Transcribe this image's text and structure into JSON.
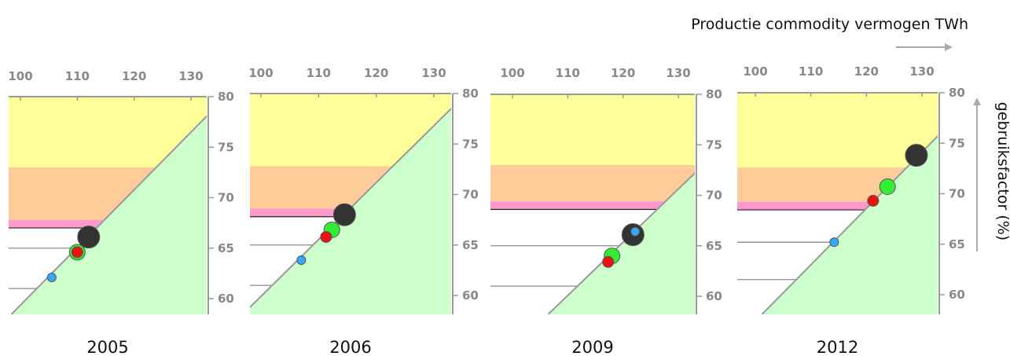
{
  "chart_data": {
    "x_axis_title": "Productie commodity vermogen TWh",
    "y_axis_title": "gebruiksfactor (%)",
    "x_ticks": [
      100,
      110,
      120,
      130
    ],
    "y_ticks": [
      60,
      65,
      70,
      75,
      80
    ],
    "colors": {
      "yellow_band": "#ffff99",
      "orange_band": "#ffcc99",
      "pink_band": "#ff99cc",
      "green_area": "#ccffcc",
      "capacity_line": "#999999",
      "black_point": "#333333",
      "green_point": "#33ee33",
      "red_point": "#ee1111",
      "blue_point": "#33aaff"
    },
    "panels": [
      {
        "year": "2005",
        "xlim": [
          97,
          133
        ],
        "ylim": [
          58.5,
          80
        ],
        "bands": {
          "pink": [
            67.0,
            67.8
          ],
          "orange": [
            67.8,
            73.0
          ],
          "yellow": [
            73.0,
            80
          ]
        },
        "capacity_line": [
          [
            98.5,
            58.5
          ],
          [
            133,
            78.2
          ]
        ],
        "reference_lines": [
          65.0,
          61.0
        ],
        "points": [
          {
            "kind": "black",
            "x": 112.0,
            "y": 66.1,
            "r": 14
          },
          {
            "kind": "green",
            "x": 110.0,
            "y": 64.6,
            "r": 10
          },
          {
            "kind": "red",
            "x": 110.0,
            "y": 64.6,
            "r": 7
          },
          {
            "kind": "blue",
            "x": 105.5,
            "y": 62.1,
            "r": 5.5
          }
        ]
      },
      {
        "year": "2006",
        "xlim": [
          97,
          133
        ],
        "ylim": [
          58.5,
          80
        ],
        "bands": {
          "pink": [
            67.8,
            68.6
          ],
          "orange": [
            68.6,
            72.8
          ],
          "yellow": [
            72.8,
            80
          ]
        },
        "capacity_line": [
          [
            97.5,
            58.5
          ],
          [
            133,
            78.5
          ]
        ],
        "reference_lines": [
          65.0,
          61.0
        ],
        "points": [
          {
            "kind": "black",
            "x": 114.5,
            "y": 68.0,
            "r": 14
          },
          {
            "kind": "green",
            "x": 112.3,
            "y": 66.5,
            "r": 10
          },
          {
            "kind": "red",
            "x": 111.3,
            "y": 65.8,
            "r": 7
          },
          {
            "kind": "blue",
            "x": 107.0,
            "y": 63.5,
            "r": 5.5
          }
        ]
      },
      {
        "year": "2009",
        "xlim": [
          97,
          133
        ],
        "ylim": [
          58.5,
          80
        ],
        "bands": {
          "pink": [
            68.6,
            69.4
          ],
          "orange": [
            69.4,
            73.0
          ],
          "yellow": [
            73.0,
            80
          ]
        },
        "capacity_line": [
          [
            107,
            58.5
          ],
          [
            133,
            72.2
          ]
        ],
        "reference_lines": [
          65.0,
          61.0
        ],
        "points": [
          {
            "kind": "black",
            "x": 121.8,
            "y": 66.1,
            "r": 14
          },
          {
            "kind": "blue",
            "x": 122.2,
            "y": 66.4,
            "r": 5.5
          },
          {
            "kind": "green",
            "x": 118.0,
            "y": 64.0,
            "r": 10
          },
          {
            "kind": "red",
            "x": 117.3,
            "y": 63.4,
            "r": 7
          }
        ]
      },
      {
        "year": "2012",
        "xlim": [
          97,
          133
        ],
        "ylim": [
          58.5,
          80
        ],
        "bands": {
          "pink": [
            68.4,
            69.2
          ],
          "orange": [
            69.2,
            72.6
          ],
          "yellow": [
            72.6,
            80
          ]
        },
        "capacity_line": [
          [
            102,
            58.5
          ],
          [
            133,
            75.8
          ]
        ],
        "reference_lines": [
          65.2,
          61.5
        ],
        "points": [
          {
            "kind": "black",
            "x": 129.0,
            "y": 73.8,
            "r": 14
          },
          {
            "kind": "green",
            "x": 123.8,
            "y": 70.7,
            "r": 10
          },
          {
            "kind": "red",
            "x": 121.2,
            "y": 69.3,
            "r": 7
          },
          {
            "kind": "blue",
            "x": 114.2,
            "y": 65.2,
            "r": 5.5
          }
        ]
      }
    ]
  }
}
